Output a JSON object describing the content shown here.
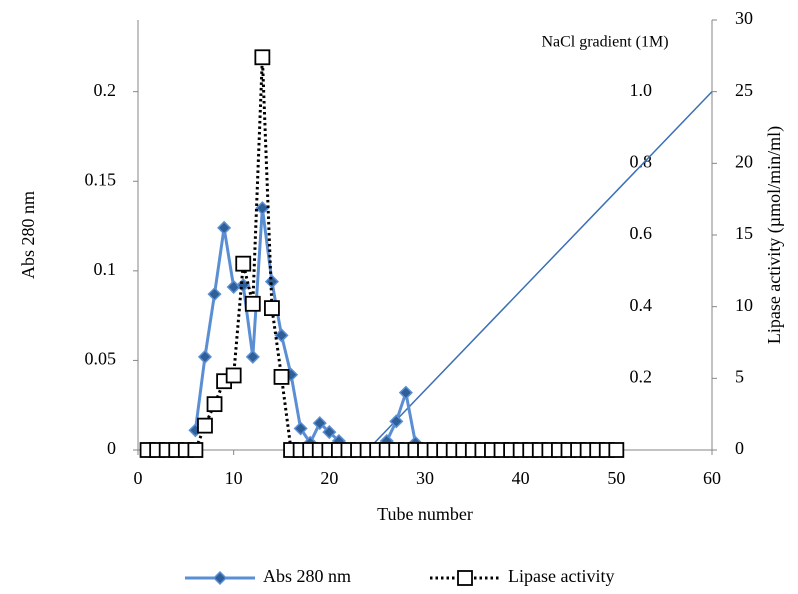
{
  "chart_data": {
    "type": "line",
    "x_label": "Tube number",
    "y_label": "Abs 280 nm",
    "y2_label": "Lipase activity (µmol/min/ml)",
    "xlim": [
      0,
      60
    ],
    "xticks": [
      0,
      10,
      20,
      30,
      40,
      50,
      60
    ],
    "ylim": [
      0,
      0.24
    ],
    "yticks": [
      0,
      0.05,
      0.1,
      0.15,
      0.2
    ],
    "y2lim": [
      0,
      30
    ],
    "y2ticks": [
      0,
      5,
      10,
      15,
      20,
      25,
      30
    ],
    "x": [
      1,
      2,
      3,
      4,
      5,
      6,
      7,
      8,
      9,
      10,
      11,
      12,
      13,
      14,
      15,
      16,
      17,
      18,
      19,
      20,
      21,
      22,
      23,
      24,
      25,
      26,
      27,
      28,
      29,
      30,
      31,
      32,
      33,
      34,
      35,
      36,
      37,
      38,
      39,
      40,
      41,
      42,
      43,
      44,
      45,
      46,
      47,
      48,
      49,
      50
    ],
    "series": [
      {
        "name": "Abs 280 nm",
        "color": "#5b8fd4",
        "marker": "diamond",
        "values": [
          null,
          null,
          null,
          null,
          null,
          0.011,
          0.052,
          0.087,
          0.124,
          0.091,
          0.092,
          0.052,
          0.135,
          0.094,
          0.064,
          0.042,
          0.012,
          0.004,
          0.015,
          0.01,
          0.005,
          0,
          null,
          null,
          null,
          0.005,
          0.016,
          0.032,
          0.004,
          null,
          null,
          null,
          null,
          null,
          null,
          null,
          null,
          null,
          null,
          null,
          null,
          null,
          null,
          null,
          null,
          null,
          null,
          null,
          null,
          null
        ]
      },
      {
        "name": "Lipase activity",
        "color": "#000000",
        "marker": "square",
        "dashed": true,
        "axis": "y2",
        "values": [
          0,
          0,
          0,
          0,
          0,
          0,
          1.7,
          3.2,
          4.8,
          5.2,
          13.0,
          10.2,
          27.4,
          9.9,
          5.1,
          0,
          0,
          0,
          0,
          0,
          0,
          0,
          0,
          0,
          0,
          0,
          0,
          0,
          0,
          0,
          0,
          0,
          0,
          0,
          0,
          0,
          0,
          0,
          0,
          0,
          0,
          0,
          0,
          0,
          0,
          0,
          0,
          0,
          0,
          0
        ]
      }
    ],
    "gradient": {
      "label": "NaCl  gradient (1M)",
      "color": "#3b6fb6",
      "x": [
        24,
        60
      ],
      "values": [
        0,
        1
      ],
      "ylim": [
        0,
        1.2
      ],
      "ticks": [
        0.2,
        0.4,
        0.6,
        0.8,
        {
          "value": 1,
          "label": "1.0"
        }
      ]
    }
  }
}
